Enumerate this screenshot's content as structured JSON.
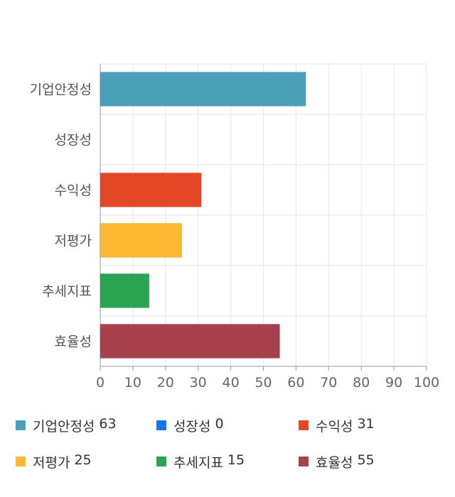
{
  "chart_data": {
    "type": "bar",
    "orientation": "horizontal",
    "categories": [
      "기업안정성",
      "성장성",
      "수익성",
      "저평가",
      "추세지표",
      "효율성"
    ],
    "values": [
      63,
      0,
      31,
      25,
      15,
      55
    ],
    "colors": [
      "#4aa0b8",
      "#1a73e8",
      "#e34724",
      "#fbb830",
      "#2aa352",
      "#a5404c"
    ],
    "xlim": [
      0,
      100
    ],
    "xticks": [
      "0",
      "10",
      "20",
      "30",
      "40",
      "50",
      "60",
      "70",
      "80",
      "90",
      "100"
    ],
    "grid": true,
    "legend_position": "bottom"
  },
  "legend": {
    "items": [
      {
        "label": "기업안정성",
        "value": "63",
        "color": "#4aa0b8"
      },
      {
        "label": "성장성",
        "value": "0",
        "color": "#1a73e8"
      },
      {
        "label": "수익성",
        "value": "31",
        "color": "#e34724"
      },
      {
        "label": "저평가",
        "value": "25",
        "color": "#fbb830"
      },
      {
        "label": "추세지표",
        "value": "15",
        "color": "#2aa352"
      },
      {
        "label": "효율성",
        "value": "55",
        "color": "#a5404c"
      }
    ]
  }
}
